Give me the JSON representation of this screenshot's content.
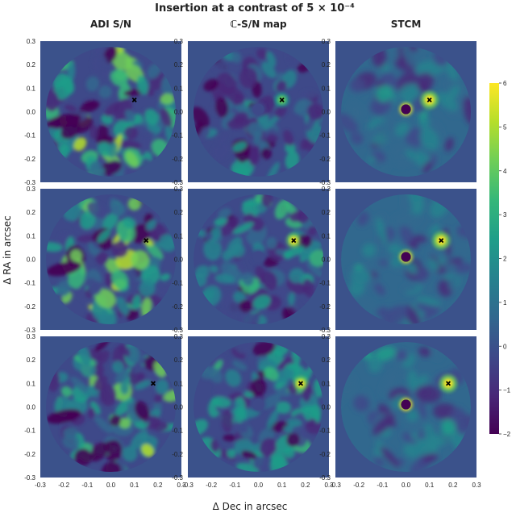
{
  "figure_title": "Insertion at a contrast of 5 × 10⁻⁴",
  "column_titles": [
    "ADI S/N",
    "ℂ-S/N map",
    "STCM"
  ],
  "chart_data": {
    "type": "heatmap",
    "title": "Insertion at a contrast of 5 × 10⁻⁴",
    "xlabel": "Δ Dec in arcsec",
    "ylabel": "Δ RA in arcsec",
    "xlim": [
      -0.3,
      0.3
    ],
    "ylim": [
      -0.3,
      0.3
    ],
    "x_ticks": [
      "-0.3",
      "-0.2",
      "-0.1",
      "0.0",
      "0.1",
      "0.2",
      "0.3"
    ],
    "y_ticks": [
      "0.3",
      "0.2",
      "0.1",
      "0.0",
      "-0.1",
      "-0.2",
      "-0.3"
    ],
    "colormap": "viridis",
    "colorbar": {
      "range": [
        -2,
        6
      ],
      "ticks": [
        "6",
        "5",
        "4",
        "3",
        "2",
        "1",
        "0",
        "−1",
        "−2"
      ]
    },
    "panels": [
      {
        "row": 0,
        "col": 0,
        "method": "ADI S/N",
        "injected_position": [
          0.1,
          0.05
        ]
      },
      {
        "row": 0,
        "col": 1,
        "method": "ℂ-S/N map",
        "injected_position": [
          0.1,
          0.05
        ]
      },
      {
        "row": 0,
        "col": 2,
        "method": "STCM",
        "injected_position": [
          0.1,
          0.05
        ]
      },
      {
        "row": 1,
        "col": 0,
        "method": "ADI S/N",
        "injected_position": [
          0.15,
          0.08
        ]
      },
      {
        "row": 1,
        "col": 1,
        "method": "ℂ-S/N map",
        "injected_position": [
          0.15,
          0.08
        ]
      },
      {
        "row": 1,
        "col": 2,
        "method": "STCM",
        "injected_position": [
          0.15,
          0.08
        ]
      },
      {
        "row": 2,
        "col": 0,
        "method": "ADI S/N",
        "injected_position": [
          0.18,
          0.1
        ]
      },
      {
        "row": 2,
        "col": 1,
        "method": "ℂ-S/N map",
        "injected_position": [
          0.18,
          0.1
        ]
      },
      {
        "row": 2,
        "col": 2,
        "method": "STCM",
        "injected_position": [
          0.18,
          0.1
        ]
      }
    ]
  },
  "colors": {
    "background": "#3b528b",
    "viridis": [
      "#440154",
      "#482878",
      "#3e4989",
      "#31688e",
      "#26828e",
      "#1f9e89",
      "#35b779",
      "#6ece58",
      "#b5de2b",
      "#fde725"
    ]
  }
}
